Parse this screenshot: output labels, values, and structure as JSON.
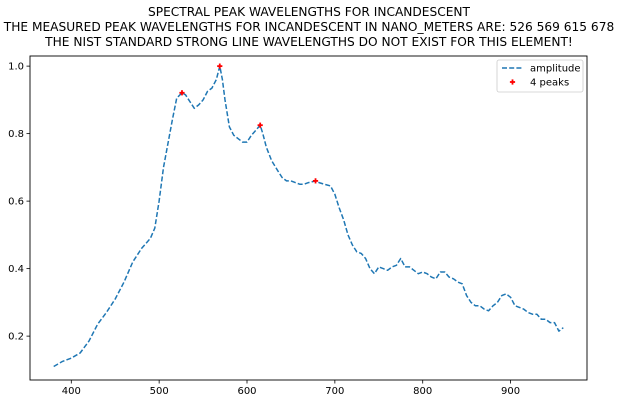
{
  "chart_data": {
    "type": "line",
    "title": "SPECTRAL PEAK WAVELENGTHS FOR INCANDESCENT",
    "subtitle_lines": [
      "THE MEASURED PEAK WAVELENGTHS FOR INCANDESCENT IN NANO_METERS ARE: 526 569 615 678",
      "THE NIST STANDARD STRONG LINE WAVELENGTHS DO NOT EXIST FOR THIS ELEMENT!"
    ],
    "xlabel": "",
    "ylabel": "",
    "xlim": [
      353,
      987
    ],
    "ylim": [
      0.07,
      1.03
    ],
    "x_ticks": [
      400,
      500,
      600,
      700,
      800,
      900
    ],
    "y_ticks": [
      0.2,
      0.4,
      0.6,
      0.8,
      1.0
    ],
    "x_tick_labels": [
      "400",
      "500",
      "600",
      "700",
      "800",
      "900"
    ],
    "y_tick_labels": [
      "0.2",
      "0.4",
      "0.6",
      "0.8",
      "1.0"
    ],
    "grid": false,
    "legend_placement": "top-right",
    "series": [
      {
        "name": "amplitude",
        "style": "dashed-line",
        "color": "#1f77b4",
        "x": [
          380,
          390,
          400,
          410,
          420,
          430,
          440,
          450,
          460,
          470,
          480,
          490,
          495,
          500,
          505,
          510,
          515,
          520,
          526,
          530,
          535,
          540,
          545,
          550,
          555,
          560,
          565,
          569,
          572,
          575,
          580,
          585,
          590,
          595,
          600,
          605,
          610,
          615,
          618,
          622,
          628,
          635,
          640,
          645,
          650,
          655,
          660,
          665,
          670,
          678,
          682,
          688,
          695,
          700,
          705,
          710,
          715,
          720,
          725,
          730,
          735,
          740,
          745,
          750,
          755,
          760,
          765,
          770,
          775,
          780,
          785,
          790,
          795,
          800,
          805,
          810,
          815,
          820,
          825,
          830,
          835,
          840,
          845,
          850,
          855,
          860,
          865,
          870,
          875,
          880,
          885,
          890,
          895,
          900,
          905,
          910,
          915,
          920,
          925,
          930,
          935,
          940,
          945,
          950,
          955,
          960
        ],
        "y": [
          0.11,
          0.125,
          0.135,
          0.15,
          0.185,
          0.235,
          0.27,
          0.31,
          0.36,
          0.42,
          0.46,
          0.49,
          0.52,
          0.6,
          0.7,
          0.77,
          0.84,
          0.905,
          0.921,
          0.915,
          0.895,
          0.875,
          0.885,
          0.9,
          0.925,
          0.935,
          0.96,
          1.0,
          0.96,
          0.9,
          0.82,
          0.795,
          0.785,
          0.775,
          0.775,
          0.795,
          0.81,
          0.825,
          0.8,
          0.76,
          0.72,
          0.69,
          0.67,
          0.66,
          0.66,
          0.655,
          0.65,
          0.65,
          0.655,
          0.66,
          0.655,
          0.65,
          0.645,
          0.62,
          0.58,
          0.545,
          0.5,
          0.47,
          0.45,
          0.445,
          0.43,
          0.4,
          0.385,
          0.405,
          0.4,
          0.395,
          0.405,
          0.41,
          0.43,
          0.405,
          0.405,
          0.395,
          0.385,
          0.39,
          0.385,
          0.375,
          0.37,
          0.39,
          0.39,
          0.375,
          0.37,
          0.36,
          0.355,
          0.32,
          0.3,
          0.29,
          0.29,
          0.28,
          0.275,
          0.29,
          0.3,
          0.32,
          0.325,
          0.315,
          0.29,
          0.285,
          0.28,
          0.27,
          0.265,
          0.265,
          0.25,
          0.25,
          0.24,
          0.24,
          0.215,
          0.225
        ]
      },
      {
        "name": "4 peaks",
        "style": "markers",
        "color": "#ff0000",
        "x": [
          526,
          569,
          615,
          678
        ],
        "y": [
          0.921,
          1.0,
          0.825,
          0.66
        ]
      }
    ]
  }
}
